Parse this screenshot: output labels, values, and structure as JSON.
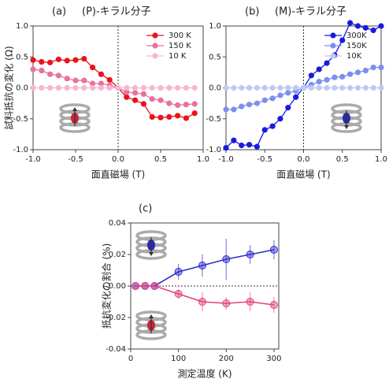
{
  "chart_data": [
    {
      "type": "line",
      "label": "(a)",
      "title": "(P)-キラル分子",
      "title_color": "#e8207a",
      "y_label": "試料抵抗の変化 (Ω)",
      "x_label": "面直磁場 (T)",
      "x": [
        -1.0,
        -0.9,
        -0.8,
        -0.7,
        -0.6,
        -0.5,
        -0.4,
        -0.3,
        -0.2,
        -0.1,
        0.0,
        0.1,
        0.2,
        0.3,
        0.4,
        0.5,
        0.6,
        0.7,
        0.8,
        0.9
      ],
      "series": [
        {
          "name": "300 K",
          "color": "#e8141b",
          "values": [
            0.45,
            0.42,
            0.41,
            0.46,
            0.44,
            0.45,
            0.47,
            0.33,
            0.22,
            0.13,
            0.0,
            -0.15,
            -0.2,
            -0.26,
            -0.47,
            -0.48,
            -0.47,
            -0.45,
            -0.49,
            -0.41
          ]
        },
        {
          "name": "150 K",
          "color": "#e9719a",
          "values": [
            0.3,
            0.28,
            0.22,
            0.2,
            0.15,
            0.12,
            0.12,
            0.07,
            0.07,
            0.04,
            0.0,
            -0.07,
            -0.08,
            -0.1,
            -0.18,
            -0.2,
            -0.25,
            -0.28,
            -0.27,
            -0.26
          ]
        },
        {
          "name": "10 K",
          "color": "#f6b6d4",
          "values": [
            0,
            0,
            0,
            0,
            0,
            0,
            0,
            0,
            0,
            0,
            0,
            0,
            0,
            0,
            0,
            0,
            0,
            0,
            0,
            0
          ]
        }
      ],
      "xlim": [
        -1,
        1
      ],
      "ylim": [
        -1,
        1
      ],
      "xticks": [
        {
          "value": -1,
          "label": "-1.0"
        },
        -0.5,
        {
          "value": 0,
          "label": "0.0"
        },
        0.5,
        {
          "value": 1,
          "label": "1.0"
        }
      ],
      "yticks": [
        {
          "value": -1,
          "label": "-1.0"
        },
        -0.5,
        {
          "value": 0,
          "label": "0.0"
        },
        0.5,
        {
          "value": 1,
          "label": "1.0"
        }
      ],
      "legend": "upper right"
    },
    {
      "type": "line",
      "label": "(b)",
      "title": "(M)-キラル分子",
      "title_color": "#1a1adf",
      "x_label": "面直磁場 (T)",
      "x": [
        -1.0,
        -0.9,
        -0.8,
        -0.7,
        -0.6,
        -0.5,
        -0.4,
        -0.3,
        -0.2,
        -0.1,
        0.0,
        0.1,
        0.2,
        0.3,
        0.4,
        0.5,
        0.6,
        0.7,
        0.8,
        0.9,
        1.0
      ],
      "series": [
        {
          "name": "300K",
          "color": "#1a1adf",
          "values": [
            -0.97,
            -0.85,
            -0.93,
            -0.92,
            -0.95,
            -0.68,
            -0.62,
            -0.5,
            -0.32,
            -0.15,
            0.0,
            0.2,
            0.3,
            0.4,
            0.53,
            0.77,
            1.05,
            1.0,
            0.97,
            0.93,
            1.0
          ]
        },
        {
          "name": "150K",
          "color": "#7c8ff0",
          "values": [
            -0.35,
            -0.35,
            -0.3,
            -0.27,
            -0.25,
            -0.2,
            -0.17,
            -0.12,
            -0.08,
            -0.05,
            0.0,
            0.05,
            0.1,
            0.13,
            0.17,
            0.18,
            0.22,
            0.25,
            0.28,
            0.33,
            0.33
          ]
        },
        {
          "name": "10K",
          "color": "#c0c8f5",
          "values": [
            0,
            0,
            0,
            0,
            0,
            0,
            0,
            0,
            0,
            0,
            0,
            0,
            0,
            0,
            0,
            0,
            0,
            0,
            0,
            0,
            0
          ]
        }
      ],
      "xlim": [
        -1,
        1
      ],
      "ylim": [
        -1,
        1
      ],
      "xticks": [
        {
          "value": -1,
          "label": "-1.0"
        },
        -0.5,
        {
          "value": 0,
          "label": "0.0"
        },
        0.5,
        {
          "value": 1,
          "label": "1.0"
        }
      ],
      "yticks": [
        {
          "value": -1,
          "label": "-1.0"
        },
        -0.5,
        {
          "value": 0,
          "label": "0.0"
        },
        0.5,
        {
          "value": 1,
          "label": "1.0"
        }
      ],
      "legend": "upper right"
    },
    {
      "type": "errorbar",
      "label": "(c)",
      "y_label": "抵抗変化の割合 (%)",
      "x_label": "測定温度 (K)",
      "x": [
        10,
        30,
        50,
        100,
        150,
        200,
        250,
        300
      ],
      "series": [
        {
          "color": "#2f2fcc",
          "values": [
            0,
            0,
            0,
            0.009,
            0.013,
            0.017,
            0.02,
            0.023
          ],
          "errors": [
            0,
            0,
            0,
            0.005,
            0.007,
            0.013,
            0.006,
            0.006
          ]
        },
        {
          "color": "#e6407f",
          "values": [
            0,
            0,
            0,
            -0.005,
            -0.01,
            -0.011,
            -0.01,
            -0.012
          ],
          "errors": [
            0,
            0,
            0,
            0.003,
            0.006,
            0.004,
            0.006,
            0.005
          ]
        }
      ],
      "xlim": [
        0,
        310
      ],
      "ylim": [
        -0.04,
        0.04
      ],
      "xticks": [
        0,
        100,
        200,
        300
      ],
      "yticks": [
        -0.04,
        -0.02,
        {
          "value": 0,
          "label": "0.00"
        },
        0.02,
        0.04
      ]
    }
  ]
}
